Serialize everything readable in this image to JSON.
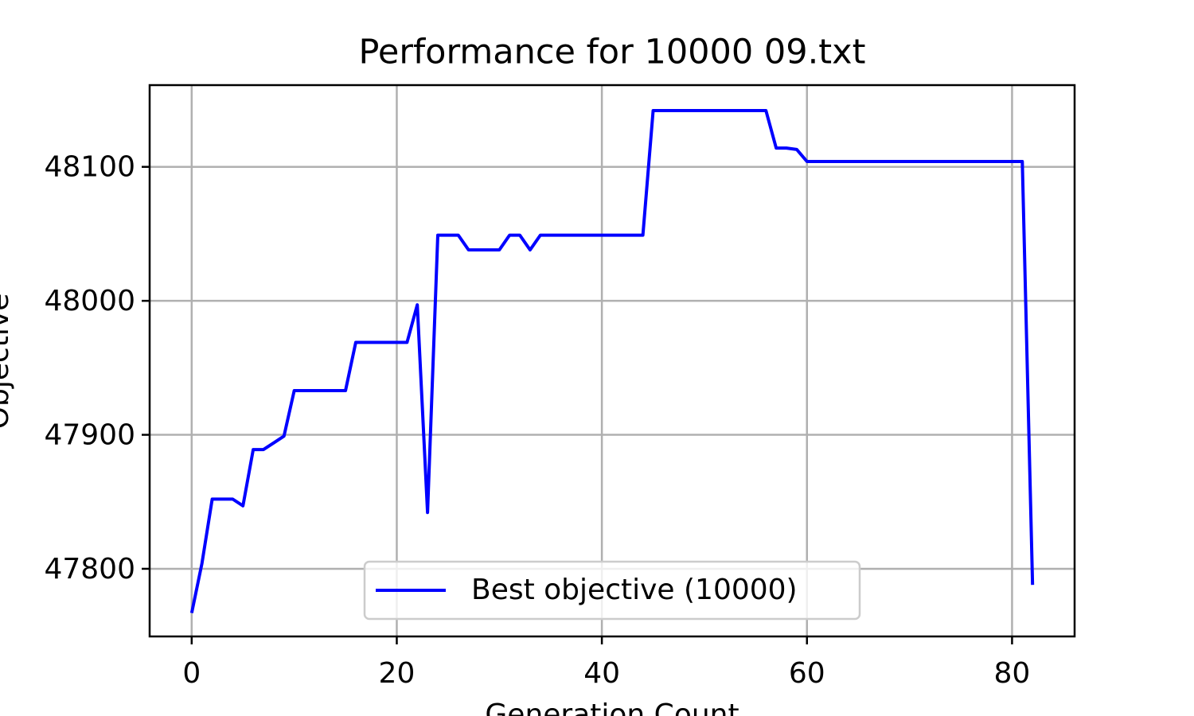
{
  "chart_data": {
    "type": "line",
    "title": "Performance for 10000 09.txt",
    "x_label": "Generation Count",
    "y_label": "Objective",
    "x": [
      0,
      1,
      2,
      3,
      4,
      5,
      6,
      7,
      8,
      9,
      10,
      11,
      12,
      13,
      14,
      15,
      16,
      17,
      18,
      19,
      20,
      21,
      22,
      23,
      24,
      25,
      26,
      27,
      28,
      29,
      30,
      31,
      32,
      33,
      34,
      35,
      36,
      37,
      38,
      39,
      40,
      41,
      42,
      43,
      44,
      45,
      46,
      47,
      48,
      49,
      50,
      51,
      52,
      53,
      54,
      55,
      56,
      57,
      58,
      59,
      60,
      61,
      62,
      63,
      64,
      65,
      66,
      67,
      68,
      69,
      70,
      71,
      72,
      73,
      74,
      75,
      76,
      77,
      78,
      79,
      80,
      81,
      82
    ],
    "series": [
      {
        "name": "Best objective (10000)",
        "color": "#0000ff",
        "values": [
          47767,
          47804,
          47852,
          47852,
          47852,
          47847,
          47889,
          47889,
          47894,
          47899,
          47933,
          47933,
          47933,
          47933,
          47933,
          47933,
          47969,
          47969,
          47969,
          47969,
          47969,
          47969,
          47997,
          47842,
          48049,
          48049,
          48049,
          48038,
          48038,
          48038,
          48038,
          48049,
          48049,
          48038,
          48049,
          48049,
          48049,
          48049,
          48049,
          48049,
          48049,
          48049,
          48049,
          48049,
          48049,
          48142,
          48142,
          48142,
          48142,
          48142,
          48142,
          48142,
          48142,
          48142,
          48142,
          48142,
          48142,
          48114,
          48114,
          48113,
          48104,
          48104,
          48104,
          48104,
          48104,
          48104,
          48104,
          48104,
          48104,
          48104,
          48104,
          48104,
          48104,
          48104,
          48104,
          48104,
          48104,
          48104,
          48104,
          48104,
          48104,
          48104,
          47788
        ]
      }
    ],
    "xlim": [
      -4.1,
      86.1
    ],
    "ylim": [
      47749.5,
      48161
    ],
    "xticks": [
      0,
      20,
      40,
      60,
      80
    ],
    "yticks": [
      47800,
      47900,
      48000,
      48100
    ],
    "grid": true,
    "legend_loc": "lower center"
  }
}
